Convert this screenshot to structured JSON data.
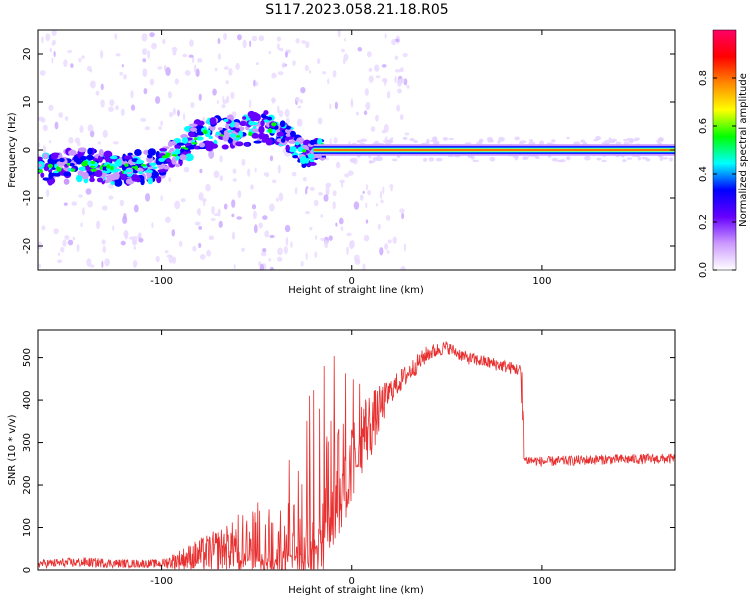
{
  "title": "S117.2023.058.21.18.R05",
  "chart_data": [
    {
      "type": "heatmap",
      "xlabel": "Height of straight line (km)",
      "ylabel": "Frequency (Hz)",
      "xlim": [
        -165,
        170
      ],
      "ylim": [
        -25,
        25
      ],
      "x_ticks": [
        -100,
        0,
        100
      ],
      "y_ticks": [
        -20,
        -10,
        0,
        10,
        20
      ],
      "colorbar": {
        "label": "Normalized spectral amplitude",
        "range": [
          0.0,
          1.0
        ],
        "ticks": [
          0.0,
          0.2,
          0.4,
          0.6,
          0.8
        ],
        "colors": [
          "#ffffff",
          "#cc99ff",
          "#6600ff",
          "#0000ff",
          "#00ffff",
          "#00ff00",
          "#ffff00",
          "#ff8800",
          "#ff0000",
          "#ff0066"
        ]
      },
      "ridge": {
        "description_points_x": [
          -165,
          -140,
          -120,
          -100,
          -80,
          -60,
          -45,
          -35,
          -25,
          -15,
          0,
          50,
          100,
          170
        ],
        "description_points_y": [
          -4,
          -3,
          -4,
          -3,
          3,
          4,
          5,
          3,
          -1,
          0,
          0,
          0,
          0,
          0
        ]
      },
      "grid": false
    },
    {
      "type": "line",
      "xlabel": "Height of straight line (km)",
      "ylabel": "SNR (10 * v/v)",
      "xlim": [
        -165,
        170
      ],
      "ylim": [
        0,
        565
      ],
      "x_ticks": [
        -100,
        0,
        100
      ],
      "y_ticks": [
        0,
        100,
        200,
        300,
        400,
        500
      ],
      "line_color": "#e83030",
      "envelope_x": [
        -165,
        -140,
        -120,
        -100,
        -80,
        -60,
        -40,
        -30,
        -20,
        -10,
        0,
        10,
        20,
        40,
        50,
        60,
        80,
        89,
        90,
        100,
        130,
        170
      ],
      "envelope_mean": [
        15,
        18,
        15,
        15,
        35,
        60,
        70,
        120,
        180,
        230,
        300,
        340,
        420,
        510,
        525,
        500,
        480,
        470,
        260,
        255,
        260,
        262
      ],
      "envelope_amp": [
        10,
        12,
        10,
        10,
        40,
        60,
        80,
        150,
        220,
        200,
        120,
        80,
        30,
        20,
        15,
        15,
        15,
        15,
        12,
        12,
        12,
        12
      ],
      "grid": false
    }
  ]
}
